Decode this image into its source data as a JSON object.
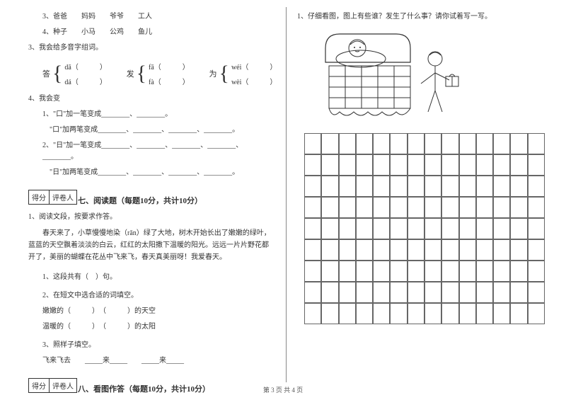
{
  "left": {
    "q3_items": "3、爸爸　　妈妈　　爷爷　　工人",
    "q4_items": "4、种子　　小马　　公鸡　　鱼儿",
    "poly_title": "3、我会给多音字组词。",
    "brackets": [
      {
        "char": "答",
        "top": "dā（　　　）",
        "bot": "dá（　　　）"
      },
      {
        "char": "发",
        "top": "fā（　　　）",
        "bot": "fà（　　　）"
      },
      {
        "char": "为",
        "top": "wéi（　　　）",
        "bot": "wèi（　　　）"
      }
    ],
    "change_title": "4、我会变",
    "change1": "1、\"口\"加一笔变成________、________。",
    "change1b": "　\"口\"加两笔变成________、________、________、________。",
    "change2": "2、\"日\"加一笔变成________、________、________、________、________。",
    "change2b": "　\"日\"加两笔变成________、________、________、________。",
    "score_a": "得分",
    "score_b": "评卷人",
    "section7": "七、阅读题（每题10分，共计10分）",
    "read_title": "1、阅读文段，按要求作答。",
    "passage": "　　春天来了，小草慢慢地染（rǎn）绿了大地，树木开始长出了嫩嫩的绿叶，蓝蓝的天空飘着淡淡的白云，红红的太阳撒下温暖的阳光。远远一片片野花都开了，美丽的蝴蝶在花丛中飞来飞，春天真美丽呀！我爱春天。",
    "q_sent": "1、这段共有（　）句。",
    "q_word": "2、在短文中选合适的词填空。",
    "q_word_a": "嫩嫩的（　　　）　（　　　）的天空",
    "q_word_b": "温暖的（　　　）　（　　　）的太阳",
    "q_pattern": "3、照样子填空。",
    "q_pattern_a": "飞来飞去　　_____来_____　　_____来_____",
    "section8": "八、看图作答（每题10分，共计10分）"
  },
  "right": {
    "prompt": "1、仔细看图，图上有些谁？发生了什么事？请你试着写一写。"
  },
  "footer": "第 3 页  共 4 页",
  "colors": {
    "text": "#333333",
    "border": "#666666",
    "bg": "#ffffff"
  },
  "grid": {
    "cols": 14,
    "rows": 9
  }
}
